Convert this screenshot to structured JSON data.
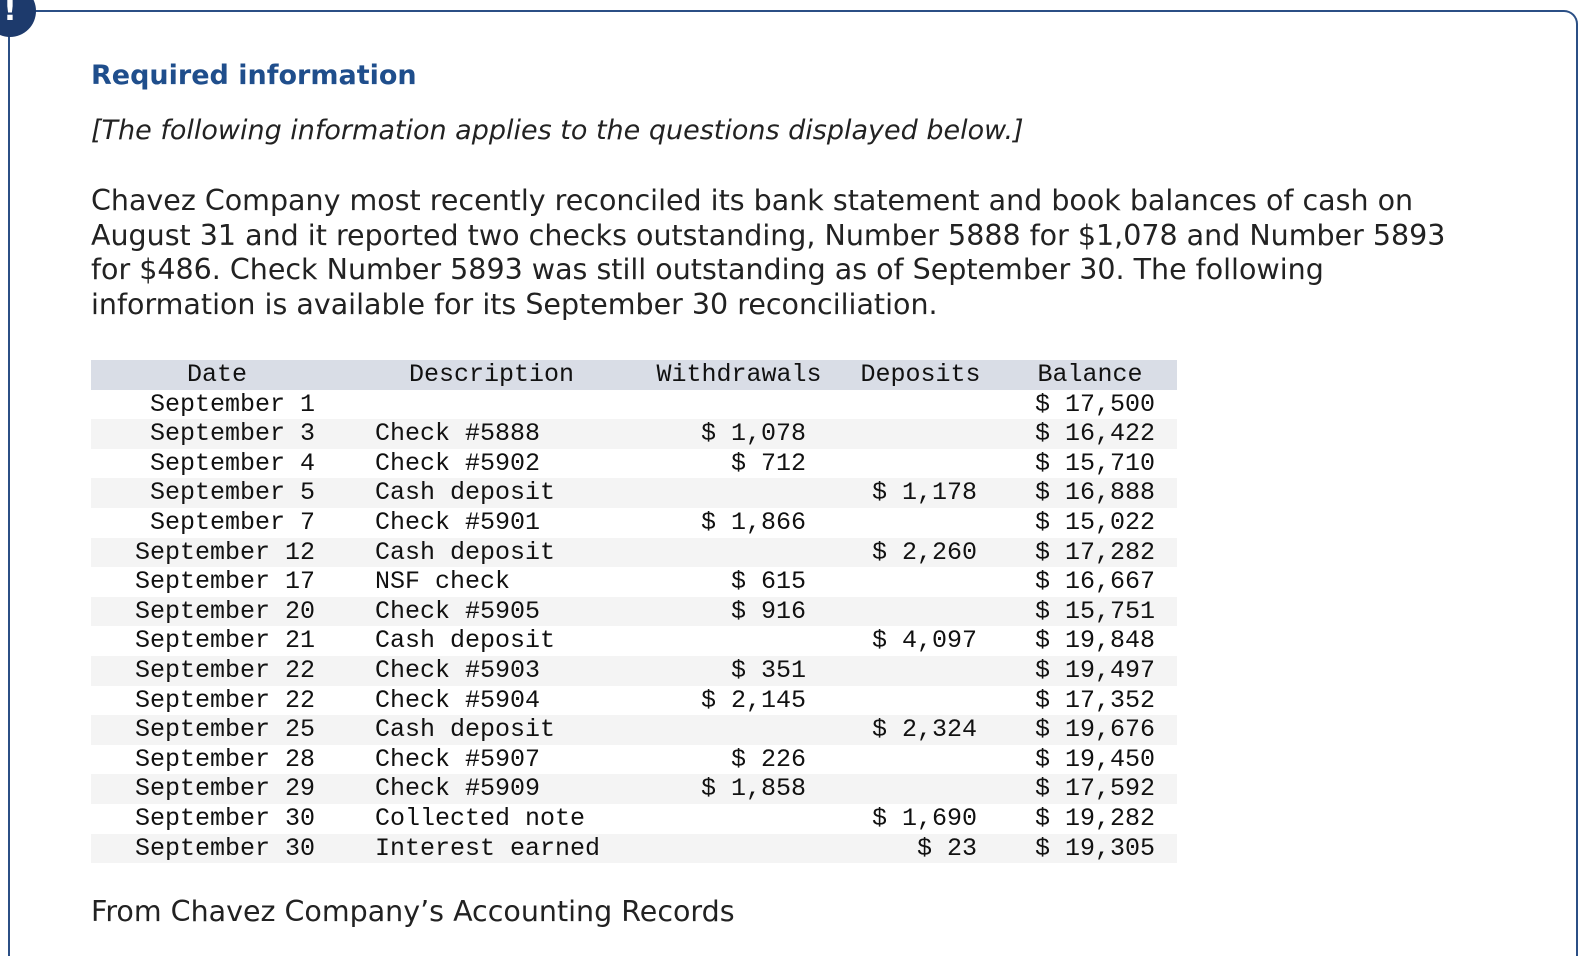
{
  "header": {
    "icon": "!",
    "title": "Required information",
    "subtitle": "[The following information applies to the questions displayed below.]"
  },
  "intro": "Chavez Company most recently reconciled its bank statement and book balances of cash on August 31 and it reported two checks outstanding, Number 5888 for $1,078 and Number 5893 for $486. Check Number 5893 was still outstanding as of September 30. The following information is available for its September 30 reconciliation.",
  "table": {
    "header": [
      "Date",
      "Description",
      "Withdrawals",
      "Deposits",
      "Balance"
    ],
    "rows": [
      [
        "September 1",
        null,
        null,
        null,
        "$ 17,500"
      ],
      [
        "September 3",
        "Check #5888",
        "$ 1,078",
        null,
        "$ 16,422"
      ],
      [
        "September 4",
        "Check #5902",
        "$ 712",
        null,
        "$ 15,710"
      ],
      [
        "September 5",
        "Cash deposit",
        null,
        "$ 1,178",
        "$ 16,888"
      ],
      [
        "September 7",
        "Check #5901",
        "$ 1,866",
        null,
        "$ 15,022"
      ],
      [
        "September 12",
        "Cash deposit",
        null,
        "$ 2,260",
        "$ 17,282"
      ],
      [
        "September 17",
        "NSF check",
        "$ 615",
        null,
        "$ 16,667"
      ],
      [
        "September 20",
        "Check #5905",
        "$ 916",
        null,
        "$ 15,751"
      ],
      [
        "September 21",
        "Cash deposit",
        null,
        "$ 4,097",
        "$ 19,848"
      ],
      [
        "September 22",
        "Check #5903",
        "$ 351",
        null,
        "$ 19,497"
      ],
      [
        "September 22",
        "Check #5904",
        "$ 2,145",
        null,
        "$ 17,352"
      ],
      [
        "September 25",
        "Cash deposit",
        null,
        "$ 2,324",
        "$ 19,676"
      ],
      [
        "September 28",
        "Check #5907",
        "$ 226",
        null,
        "$ 19,450"
      ],
      [
        "September 29",
        "Check #5909",
        "$ 1,858",
        null,
        "$ 17,592"
      ],
      [
        "September 30",
        "Collected note",
        null,
        "$ 1,690",
        "$ 19,282"
      ],
      [
        "September 30",
        "Interest earned",
        null,
        "$ 23",
        "$ 19,305"
      ]
    ]
  },
  "footer": "From Chavez Company’s Accounting Records"
}
